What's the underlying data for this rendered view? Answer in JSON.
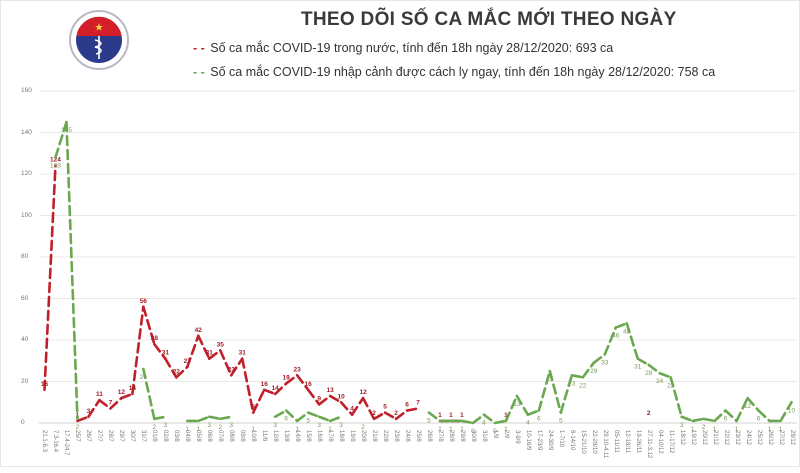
{
  "header": {
    "title": "THEO DÕI SỐ CA MẮC MỚI THEO NGÀY",
    "logo": {
      "icon": "ministry-of-health-emblem-icon",
      "top_text": "BỘ Y TẾ",
      "bottom_text": "MINISTRY OF HEALTH"
    },
    "legend": [
      {
        "marker": "- -",
        "label": "Số ca mắc COVID-19 trong nước, tính đến 18h ngày 28/12/2020: 693 ca",
        "color": "#c0202a"
      },
      {
        "marker": "- -",
        "label": "Số ca mắc COVID-19 nhập cảnh được cách ly ngay, tính đến 18h ngày 28/12/2020: 758 ca",
        "color": "#6aa84f"
      }
    ]
  },
  "chart_data": {
    "type": "line",
    "title": "THEO DÕI SỐ CA MẮC MỚI THEO NGÀY",
    "xlabel": "",
    "ylabel": "",
    "ylim": [
      0,
      160
    ],
    "yticks": [
      0,
      20,
      40,
      60,
      80,
      100,
      120,
      140,
      160
    ],
    "grid": true,
    "legend_position": "top",
    "categories": [
      "21.1-6.3",
      "7.3-16.4",
      "17.4-24.7",
      "25/7",
      "26/7",
      "27/7",
      "28/7",
      "29/7",
      "30/7",
      "31/7",
      "01/8",
      "02/8",
      "03/8",
      "04/8",
      "05/8",
      "06/8",
      "07/8",
      "08/8",
      "09/8",
      "10/8",
      "11/8",
      "12/8",
      "13/8",
      "14/8",
      "15/8",
      "16/8",
      "17/8",
      "18/8",
      "19/8",
      "20/8",
      "21/8",
      "22/8",
      "23/8",
      "24/8",
      "25/8",
      "26/8",
      "27/8",
      "28/8",
      "29/8",
      "30/8",
      "31/8",
      "1/9",
      "2/9",
      "3-9/9",
      "10-16/9",
      "17-23/9",
      "24-30/9",
      "1-7/10",
      "8-14/10",
      "15-21/10",
      "22-28/10",
      "29.10-4.11",
      "05-11/11",
      "12-18/11",
      "19-26/11",
      "27.11-3.12",
      "04-10/12",
      "11-17/12",
      "18/12",
      "19/12",
      "20/12",
      "21/12",
      "22/12",
      "23/12",
      "24/12",
      "25/12",
      "26/12",
      "27/12",
      "28/12"
    ],
    "series": [
      {
        "name": "Số ca mắc COVID-19 trong nước",
        "color": "#c0202a",
        "values": [
          16,
          124,
          null,
          1,
          3,
          11,
          7,
          12,
          14,
          56,
          38,
          31,
          22,
          27,
          42,
          31,
          35,
          23,
          31,
          5,
          16,
          14,
          19,
          23,
          16,
          9,
          13,
          10,
          4,
          12,
          2,
          5,
          2,
          6,
          7,
          null,
          1,
          1,
          1,
          null,
          null,
          null,
          1,
          null,
          null,
          null,
          null,
          null,
          null,
          null,
          null,
          null,
          null,
          null,
          null,
          2,
          null,
          null,
          null,
          null,
          null,
          null,
          null,
          null,
          null,
          null,
          null,
          null,
          null
        ]
      },
      {
        "name": "Số ca mắc COVID-19 nhập cảnh được cách ly ngay",
        "color": "#6aa84f",
        "values": [
          null,
          128,
          145,
          2,
          null,
          null,
          null,
          null,
          null,
          26,
          2,
          3,
          null,
          1,
          1,
          3,
          2,
          3,
          null,
          1,
          null,
          3,
          6,
          1,
          5,
          3,
          1,
          3,
          null,
          2,
          null,
          null,
          null,
          null,
          null,
          5,
          1,
          1,
          1,
          0,
          4,
          0,
          1,
          13,
          4,
          6,
          25,
          5,
          23,
          22,
          29,
          33,
          46,
          48,
          31,
          28,
          24,
          22,
          3,
          1,
          2,
          1,
          6,
          1,
          12,
          6,
          1,
          1,
          10
        ]
      }
    ]
  }
}
